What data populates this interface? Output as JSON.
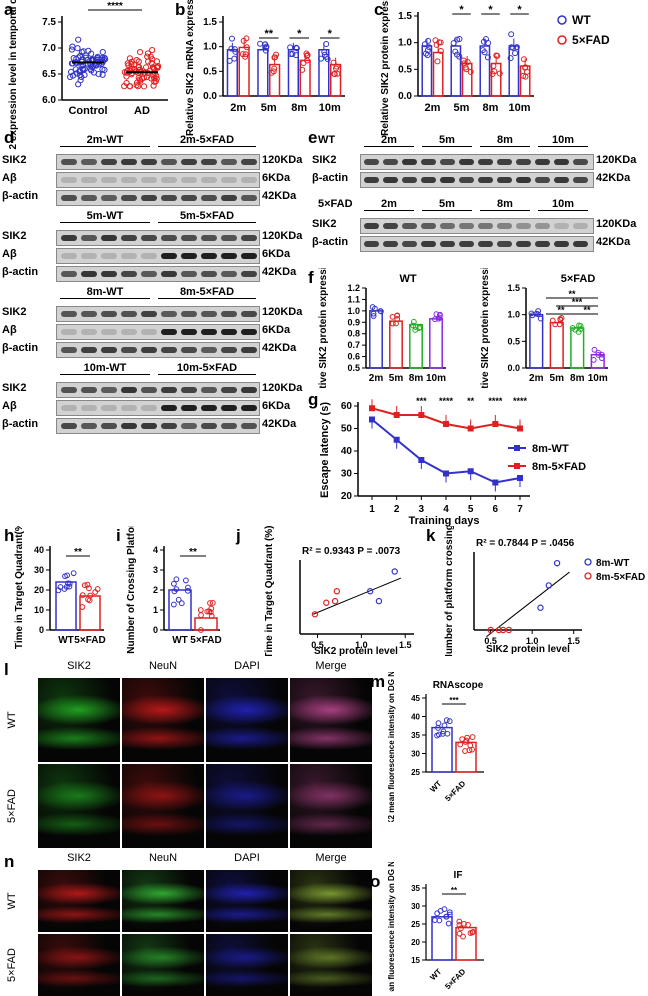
{
  "panel_labels": [
    "a",
    "b",
    "c",
    "d",
    "e",
    "f",
    "g",
    "h",
    "i",
    "j",
    "k",
    "l",
    "m",
    "n",
    "o"
  ],
  "colors": {
    "wt": "#3232c8",
    "ad": "#e02020",
    "purple": "#8a2be2",
    "green": "#22b022",
    "dark": "#222222"
  },
  "a": {
    "ylabel": "SIK2 expression level in temporal cortex",
    "yticks": [
      "6.0",
      "6.5",
      "7.0",
      "7.5"
    ],
    "categories": [
      "Control",
      "AD"
    ],
    "sig": "****"
  },
  "b": {
    "ylabel": "Relative SIK2 mRNA expression",
    "yticks": [
      "0.0",
      "0.5",
      "1.0",
      "1.5"
    ],
    "categories": [
      "2m",
      "5m",
      "8m",
      "10m"
    ],
    "sig": [
      "",
      "**",
      "*",
      "*"
    ]
  },
  "c": {
    "ylabel": "Relative SIK2 protein expression",
    "yticks": [
      "0.0",
      "0.5",
      "1.0",
      "1.5"
    ],
    "categories": [
      "2m",
      "5m",
      "8m",
      "10m"
    ],
    "sig": [
      "",
      "*",
      "*",
      "*"
    ],
    "legend": [
      "WT",
      "5×FAD"
    ]
  },
  "d": {
    "groups": [
      {
        "wt": "2m-WT",
        "fad": "2m-5×FAD"
      },
      {
        "wt": "5m-WT",
        "fad": "5m-5×FAD"
      },
      {
        "wt": "8m-WT",
        "fad": "8m-5×FAD"
      },
      {
        "wt": "10m-WT",
        "fad": "10m-5×FAD"
      }
    ],
    "rows": [
      "SIK2",
      "Aβ",
      "β-actin"
    ],
    "sizes": [
      "120KDa",
      "6KDa",
      "42KDa"
    ]
  },
  "e": {
    "blocks": [
      {
        "genotype": "WT",
        "ages": [
          "2m",
          "5m",
          "8m",
          "10m"
        ]
      },
      {
        "genotype": "5×FAD",
        "ages": [
          "2m",
          "5m",
          "8m",
          "10m"
        ]
      }
    ],
    "rows": [
      "SIK2",
      "β-actin"
    ],
    "sizes": [
      "120KDa",
      "42KDa"
    ]
  },
  "f": {
    "ylabel": "Relative SIK2 protein expression",
    "left_title": "WT",
    "right_title": "5×FAD",
    "left_yticks": [
      "0.5",
      "0.6",
      "0.7",
      "0.8",
      "0.9",
      "1.0",
      "1.1",
      "1.2"
    ],
    "right_yticks": [
      "0.0",
      "0.5",
      "1.0",
      "1.5"
    ],
    "categories": [
      "2m",
      "5m",
      "8m",
      "10m"
    ],
    "right_sig": [
      "**",
      "***",
      "**",
      "**"
    ]
  },
  "g": {
    "ylabel": "Escape latency (s)",
    "xlabel": "Training days",
    "yticks": [
      "20",
      "30",
      "40",
      "50",
      "60"
    ],
    "xticks": [
      "1",
      "2",
      "3",
      "4",
      "5",
      "6",
      "7"
    ],
    "sig": [
      "",
      "",
      "***",
      "****",
      "**",
      "****",
      "****"
    ],
    "legend": [
      "8m-WT",
      "8m-5×FAD"
    ]
  },
  "h": {
    "ylabel": "Time in Target Quadrant(%)",
    "yticks": [
      "0",
      "10",
      "20",
      "30",
      "40"
    ],
    "categories": [
      "WT",
      "5×FAD"
    ],
    "sig": "**"
  },
  "i": {
    "ylabel": "Number of Crossing Platform",
    "yticks": [
      "0",
      "1",
      "2",
      "3",
      "4"
    ],
    "categories": [
      "WT",
      "5×FAD"
    ],
    "sig": "**"
  },
  "j": {
    "ylabel": "Time in Target Quadrant (%)",
    "xlabel": "SIK2 protein level",
    "stat": "R² = 0.9343 P = .0073",
    "xticks": [
      "0.5",
      "1.0",
      "1.5"
    ]
  },
  "k": {
    "ylabel": "Number of platform crossings",
    "xlabel": "SIK2 protein level",
    "stat": "R² = 0.7844 P = .0456",
    "xticks": [
      "0.5",
      "1.0",
      "1.5"
    ],
    "legend": [
      "8m-WT",
      "8m-5×FAD"
    ]
  },
  "l": {
    "columns": [
      "SIK2",
      "NeuN",
      "DAPI",
      "Merge"
    ],
    "rows": [
      "WT",
      "5×FAD"
    ]
  },
  "m": {
    "title": "RNAscope",
    "ylabel": "SIK2 mean fluorescence intensity on DG NeuN+ cells",
    "yticks": [
      "25",
      "30",
      "35",
      "40",
      "45"
    ],
    "categories": [
      "WT",
      "5×FAD"
    ],
    "sig": "***"
  },
  "n": {
    "columns": [
      "SIK2",
      "NeuN",
      "DAPI",
      "Merge"
    ],
    "rows": [
      "WT",
      "5×FAD"
    ]
  },
  "o": {
    "title": "IF",
    "ylabel": "SIK2 mean fluorescence intensity on DG NeuN+ cells",
    "yticks": [
      "15",
      "20",
      "25",
      "30",
      "35"
    ],
    "categories": [
      "WT",
      "5×FAD"
    ],
    "sig": "**"
  },
  "chart_data": [
    {
      "panel": "a",
      "type": "bar",
      "categories": [
        "Control",
        "AD"
      ],
      "values": [
        6.77,
        6.57
      ],
      "ylim": [
        6.0,
        7.6
      ]
    },
    {
      "panel": "b",
      "type": "bar",
      "categories": [
        "2m",
        "5m",
        "8m",
        "10m"
      ],
      "series": [
        {
          "name": "WT",
          "values": [
            1.0,
            1.0,
            1.0,
            1.0
          ]
        },
        {
          "name": "5×FAD",
          "values": [
            1.05,
            0.68,
            0.77,
            0.68
          ]
        }
      ],
      "ylim": [
        0,
        1.6
      ]
    },
    {
      "panel": "c",
      "type": "bar",
      "categories": [
        "2m",
        "5m",
        "8m",
        "10m"
      ],
      "series": [
        {
          "name": "WT",
          "values": [
            1.0,
            1.0,
            1.0,
            1.0
          ]
        },
        {
          "name": "5×FAD",
          "values": [
            0.87,
            0.65,
            0.65,
            0.6
          ]
        }
      ],
      "ylim": [
        0,
        1.6
      ]
    },
    {
      "panel": "f-left",
      "type": "bar",
      "categories": [
        "2m",
        "5m",
        "8m",
        "10m"
      ],
      "values": [
        1.0,
        0.91,
        0.88,
        0.93
      ],
      "ylim": [
        0.5,
        1.2
      ]
    },
    {
      "panel": "f-right",
      "type": "bar",
      "categories": [
        "2m",
        "5m",
        "8m",
        "10m"
      ],
      "values": [
        1.0,
        0.85,
        0.75,
        0.25
      ],
      "ylim": [
        0,
        1.5
      ]
    },
    {
      "panel": "g",
      "type": "line",
      "x": [
        1,
        2,
        3,
        4,
        5,
        6,
        7
      ],
      "series": [
        {
          "name": "8m-WT",
          "values": [
            54,
            45,
            36,
            30,
            31,
            26,
            28
          ]
        },
        {
          "name": "8m-5×FAD",
          "values": [
            59,
            56,
            56,
            52,
            50,
            52,
            50
          ]
        }
      ],
      "ylim": [
        20,
        60
      ]
    },
    {
      "panel": "h",
      "type": "bar",
      "categories": [
        "WT",
        "5×FAD"
      ],
      "values": [
        24,
        17
      ],
      "ylim": [
        0,
        40
      ]
    },
    {
      "panel": "i",
      "type": "bar",
      "categories": [
        "WT",
        "5×FAD"
      ],
      "values": [
        2.0,
        0.6
      ],
      "ylim": [
        0,
        4
      ]
    },
    {
      "panel": "j",
      "type": "scatter",
      "points": [
        [
          0.47,
          12
        ],
        [
          0.6,
          19
        ],
        [
          0.7,
          20
        ],
        [
          0.72,
          26
        ],
        [
          1.1,
          26
        ],
        [
          1.2,
          20
        ],
        [
          1.38,
          38
        ]
      ]
    },
    {
      "panel": "k",
      "type": "scatter",
      "points": [
        [
          0.5,
          0
        ],
        [
          0.6,
          0
        ],
        [
          0.65,
          0
        ],
        [
          0.72,
          0
        ],
        [
          1.1,
          1
        ],
        [
          1.2,
          2
        ],
        [
          1.3,
          3
        ]
      ]
    },
    {
      "panel": "m",
      "type": "bar",
      "categories": [
        "WT",
        "5×FAD"
      ],
      "values": [
        37,
        33
      ],
      "ylim": [
        25,
        45
      ]
    },
    {
      "panel": "o",
      "type": "bar",
      "categories": [
        "WT",
        "5×FAD"
      ],
      "values": [
        27,
        24
      ],
      "ylim": [
        15,
        35
      ]
    }
  ]
}
